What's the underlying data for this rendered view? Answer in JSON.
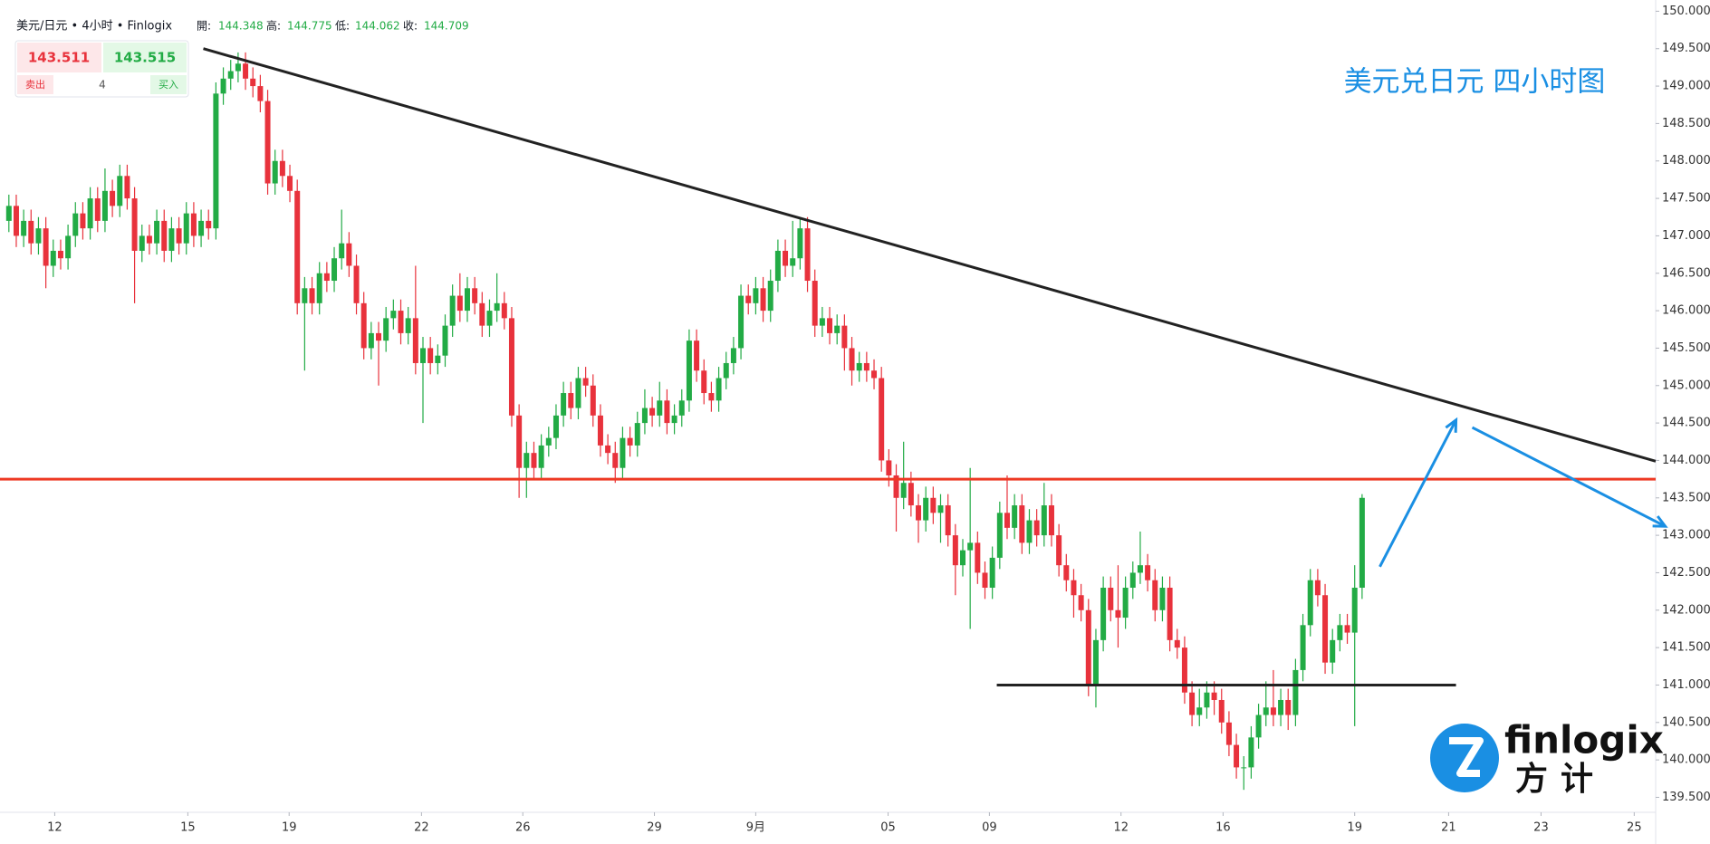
{
  "chart_data": {
    "type": "candlestick",
    "header": {
      "symbol": "美元/日元 • 4小时 • Finlogix",
      "open_label": "開:",
      "open": 144.348,
      "high_label": "高:",
      "high": 144.775,
      "low_label": "低:",
      "low": 144.062,
      "close_label": "收:",
      "close": 144.709
    },
    "trade_box": {
      "sell": 143.511,
      "buy": 143.515,
      "sell_label": "卖出",
      "lot": 4,
      "buy_label": "买入"
    },
    "title": "美元兑日元 四小时图",
    "logo": {
      "word": "finlogix",
      "sub": "方计"
    },
    "up_color": "#22ab45",
    "down_color": "#e8323c",
    "xlim": [
      -1.2,
      222.7
    ],
    "xticks": [
      {
        "value": 6.2,
        "label": "12"
      },
      {
        "value": 24.2,
        "label": "15"
      },
      {
        "value": 37.9,
        "label": "19"
      },
      {
        "value": 55.8,
        "label": "22"
      },
      {
        "value": 69.5,
        "label": "26"
      },
      {
        "value": 87.3,
        "label": "29"
      },
      {
        "value": 101,
        "label": "9月"
      },
      {
        "value": 118.9,
        "label": "05"
      },
      {
        "value": 132.6,
        "label": "09"
      },
      {
        "value": 150.4,
        "label": "12"
      },
      {
        "value": 164.2,
        "label": "16"
      },
      {
        "value": 182,
        "label": "19"
      },
      {
        "value": 194.7,
        "label": "21"
      },
      {
        "value": 207.2,
        "label": "23"
      },
      {
        "value": 219.8,
        "label": "25"
      }
    ],
    "ylim": [
      139.3,
      150.15
    ],
    "yticks": [
      {
        "value": 139.5,
        "label": "139.500"
      },
      {
        "value": 140,
        "label": "140.000"
      },
      {
        "value": 140.5,
        "label": "140.500"
      },
      {
        "value": 141,
        "label": "141.000"
      },
      {
        "value": 141.5,
        "label": "141.500"
      },
      {
        "value": 142,
        "label": "142.000"
      },
      {
        "value": 142.5,
        "label": "142.500"
      },
      {
        "value": 143,
        "label": "143.000"
      },
      {
        "value": 143.5,
        "label": "143.500"
      },
      {
        "value": 144,
        "label": "144.000"
      },
      {
        "value": 144.5,
        "label": "144.500"
      },
      {
        "value": 145,
        "label": "145.000"
      },
      {
        "value": 145.5,
        "label": "145.500"
      },
      {
        "value": 146,
        "label": "146.000"
      },
      {
        "value": 146.5,
        "label": "146.500"
      },
      {
        "value": 147,
        "label": "147.000"
      },
      {
        "value": 147.5,
        "label": "147.500"
      },
      {
        "value": 148,
        "label": "148.000"
      },
      {
        "value": 148.5,
        "label": "148.500"
      },
      {
        "value": 149,
        "label": "149.000"
      },
      {
        "value": 149.5,
        "label": "149.500"
      },
      {
        "value": 150,
        "label": "150.000"
      }
    ],
    "lines": [
      {
        "color": "#ee3a24",
        "points": [
          [
            -1.2,
            143.75
          ],
          [
            222.7,
            143.75
          ]
        ]
      },
      {
        "color": "#222222",
        "points": [
          [
            26.3,
            149.5
          ],
          [
            222.7,
            143.99
          ]
        ]
      },
      {
        "color": "#222222",
        "points": [
          [
            133.6,
            141.0
          ],
          [
            195.7,
            141.0
          ]
        ]
      }
    ],
    "arrows": [
      {
        "color": "#1a8fe3",
        "points": [
          [
            185.4,
            142.58
          ],
          [
            195.7,
            144.54
          ]
        ]
      },
      {
        "color": "#1a8fe3",
        "points": [
          [
            197.9,
            144.44
          ],
          [
            224,
            143.12
          ]
        ]
      }
    ],
    "candles": [
      [
        147.2,
        147.55,
        147.05,
        147.4
      ],
      [
        147.4,
        147.55,
        146.85,
        147.0
      ],
      [
        147.0,
        147.35,
        146.85,
        147.2
      ],
      [
        147.2,
        147.35,
        146.75,
        146.9
      ],
      [
        146.9,
        147.25,
        146.75,
        147.1
      ],
      [
        147.1,
        147.25,
        146.3,
        146.6
      ],
      [
        146.6,
        146.95,
        146.45,
        146.8
      ],
      [
        146.8,
        146.95,
        146.55,
        146.7
      ],
      [
        146.7,
        147.15,
        146.55,
        147.0
      ],
      [
        147.0,
        147.45,
        146.85,
        147.3
      ],
      [
        147.3,
        147.45,
        146.95,
        147.1
      ],
      [
        147.1,
        147.65,
        146.95,
        147.5
      ],
      [
        147.5,
        147.65,
        147.05,
        147.2
      ],
      [
        147.2,
        147.9,
        147.05,
        147.6
      ],
      [
        147.6,
        147.75,
        147.25,
        147.4
      ],
      [
        147.4,
        147.95,
        147.25,
        147.8
      ],
      [
        147.8,
        147.95,
        147.35,
        147.5
      ],
      [
        147.5,
        147.65,
        146.1,
        146.8
      ],
      [
        146.8,
        147.15,
        146.65,
        147.0
      ],
      [
        147.0,
        147.15,
        146.75,
        146.9
      ],
      [
        146.9,
        147.35,
        146.75,
        147.2
      ],
      [
        147.2,
        147.35,
        146.65,
        146.8
      ],
      [
        146.8,
        147.25,
        146.65,
        147.1
      ],
      [
        147.1,
        147.25,
        146.75,
        146.9
      ],
      [
        146.9,
        147.45,
        146.75,
        147.3
      ],
      [
        147.3,
        147.45,
        146.85,
        147.0
      ],
      [
        147.0,
        147.35,
        146.85,
        147.2
      ],
      [
        147.2,
        147.35,
        146.95,
        147.1
      ],
      [
        147.1,
        149.05,
        146.95,
        148.9
      ],
      [
        148.9,
        149.25,
        148.75,
        149.1
      ],
      [
        149.1,
        149.35,
        148.95,
        149.2
      ],
      [
        149.2,
        149.45,
        149.05,
        149.3
      ],
      [
        149.3,
        149.45,
        148.95,
        149.1
      ],
      [
        149.1,
        149.25,
        148.85,
        149.0
      ],
      [
        149.0,
        149.15,
        148.65,
        148.8
      ],
      [
        148.8,
        148.95,
        147.55,
        147.7
      ],
      [
        147.7,
        148.15,
        147.55,
        148.0
      ],
      [
        148.0,
        148.15,
        147.65,
        147.8
      ],
      [
        147.8,
        147.95,
        147.45,
        147.6
      ],
      [
        147.6,
        147.75,
        145.95,
        146.1
      ],
      [
        146.1,
        146.45,
        145.2,
        146.3
      ],
      [
        146.3,
        146.45,
        145.95,
        146.1
      ],
      [
        146.1,
        146.65,
        145.95,
        146.5
      ],
      [
        146.5,
        146.65,
        146.25,
        146.4
      ],
      [
        146.4,
        146.85,
        146.25,
        146.7
      ],
      [
        146.7,
        147.35,
        146.55,
        146.9
      ],
      [
        146.9,
        147.05,
        146.45,
        146.6
      ],
      [
        146.6,
        146.75,
        145.95,
        146.1
      ],
      [
        146.1,
        146.25,
        145.35,
        145.5
      ],
      [
        145.5,
        145.85,
        145.35,
        145.7
      ],
      [
        145.7,
        145.85,
        145.0,
        145.6
      ],
      [
        145.6,
        146.05,
        145.45,
        145.9
      ],
      [
        145.9,
        146.15,
        145.75,
        146.0
      ],
      [
        146.0,
        146.15,
        145.55,
        145.7
      ],
      [
        145.7,
        146.05,
        145.55,
        145.9
      ],
      [
        145.9,
        146.6,
        145.15,
        145.3
      ],
      [
        145.3,
        145.65,
        144.5,
        145.5
      ],
      [
        145.5,
        145.65,
        145.15,
        145.3
      ],
      [
        145.3,
        145.55,
        145.15,
        145.4
      ],
      [
        145.4,
        145.95,
        145.25,
        145.8
      ],
      [
        145.8,
        146.35,
        145.65,
        146.2
      ],
      [
        146.2,
        146.5,
        145.85,
        146.0
      ],
      [
        146.0,
        146.45,
        145.85,
        146.3
      ],
      [
        146.3,
        146.45,
        145.95,
        146.1
      ],
      [
        146.1,
        146.25,
        145.65,
        145.8
      ],
      [
        145.8,
        146.15,
        145.65,
        146.0
      ],
      [
        146.0,
        146.5,
        145.85,
        146.1
      ],
      [
        146.1,
        146.25,
        145.75,
        145.9
      ],
      [
        145.9,
        146.05,
        144.45,
        144.6
      ],
      [
        144.6,
        144.75,
        143.5,
        143.9
      ],
      [
        143.9,
        144.25,
        143.5,
        144.1
      ],
      [
        144.1,
        144.25,
        143.75,
        143.9
      ],
      [
        143.9,
        144.35,
        143.75,
        144.2
      ],
      [
        144.2,
        144.45,
        144.05,
        144.3
      ],
      [
        144.3,
        144.75,
        144.15,
        144.6
      ],
      [
        144.6,
        145.05,
        144.45,
        144.9
      ],
      [
        144.9,
        145.05,
        144.55,
        144.7
      ],
      [
        144.7,
        145.25,
        144.55,
        145.1
      ],
      [
        145.1,
        145.25,
        144.85,
        145.0
      ],
      [
        145.0,
        145.15,
        144.45,
        144.6
      ],
      [
        144.6,
        144.75,
        144.05,
        144.2
      ],
      [
        144.2,
        144.35,
        143.95,
        144.1
      ],
      [
        144.1,
        144.25,
        143.7,
        143.9
      ],
      [
        143.9,
        144.45,
        143.75,
        144.3
      ],
      [
        144.3,
        144.45,
        144.05,
        144.2
      ],
      [
        144.2,
        144.65,
        144.05,
        144.5
      ],
      [
        144.5,
        144.95,
        144.35,
        144.7
      ],
      [
        144.7,
        144.85,
        144.45,
        144.6
      ],
      [
        144.6,
        145.05,
        144.45,
        144.8
      ],
      [
        144.8,
        144.95,
        144.35,
        144.5
      ],
      [
        144.5,
        144.75,
        144.35,
        144.6
      ],
      [
        144.6,
        144.95,
        144.45,
        144.8
      ],
      [
        144.8,
        145.75,
        144.65,
        145.6
      ],
      [
        145.6,
        145.75,
        145.05,
        145.2
      ],
      [
        145.2,
        145.35,
        144.75,
        144.9
      ],
      [
        144.9,
        145.05,
        144.65,
        144.8
      ],
      [
        144.8,
        145.25,
        144.65,
        145.1
      ],
      [
        145.1,
        145.45,
        144.95,
        145.3
      ],
      [
        145.3,
        145.65,
        145.15,
        145.5
      ],
      [
        145.5,
        146.35,
        145.35,
        146.2
      ],
      [
        146.2,
        146.35,
        145.95,
        146.1
      ],
      [
        146.1,
        146.45,
        145.95,
        146.3
      ],
      [
        146.3,
        146.45,
        145.85,
        146.0
      ],
      [
        146.0,
        146.55,
        145.85,
        146.4
      ],
      [
        146.4,
        146.95,
        146.25,
        146.8
      ],
      [
        146.8,
        146.95,
        146.45,
        146.6
      ],
      [
        146.6,
        147.2,
        146.45,
        146.7
      ],
      [
        146.7,
        147.25,
        146.55,
        147.1
      ],
      [
        147.1,
        147.25,
        146.25,
        146.4
      ],
      [
        146.4,
        146.55,
        145.65,
        145.8
      ],
      [
        145.8,
        146.05,
        145.65,
        145.9
      ],
      [
        145.9,
        146.05,
        145.55,
        145.7
      ],
      [
        145.7,
        145.95,
        145.55,
        145.8
      ],
      [
        145.8,
        145.95,
        145.2,
        145.5
      ],
      [
        145.5,
        145.65,
        145.0,
        145.2
      ],
      [
        145.2,
        145.45,
        145.05,
        145.3
      ],
      [
        145.3,
        145.45,
        145.05,
        145.2
      ],
      [
        145.2,
        145.35,
        144.95,
        145.1
      ],
      [
        145.1,
        145.25,
        143.85,
        144.0
      ],
      [
        144.0,
        144.15,
        143.65,
        143.8
      ],
      [
        143.8,
        143.95,
        143.05,
        143.5
      ],
      [
        143.5,
        144.25,
        143.35,
        143.7
      ],
      [
        143.7,
        143.85,
        143.25,
        143.4
      ],
      [
        143.4,
        143.55,
        142.9,
        143.2
      ],
      [
        143.2,
        143.65,
        143.05,
        143.5
      ],
      [
        143.5,
        143.65,
        143.15,
        143.3
      ],
      [
        143.3,
        143.55,
        142.9,
        143.4
      ],
      [
        143.4,
        143.55,
        142.85,
        143.0
      ],
      [
        143.0,
        143.15,
        142.2,
        142.6
      ],
      [
        142.6,
        142.95,
        142.45,
        142.8
      ],
      [
        142.8,
        143.9,
        141.75,
        142.9
      ],
      [
        142.9,
        143.05,
        142.35,
        142.5
      ],
      [
        142.5,
        142.65,
        142.15,
        142.3
      ],
      [
        142.3,
        142.85,
        142.15,
        142.7
      ],
      [
        142.7,
        143.45,
        142.55,
        143.3
      ],
      [
        143.3,
        143.8,
        142.95,
        143.1
      ],
      [
        143.1,
        143.55,
        142.95,
        143.4
      ],
      [
        143.4,
        143.55,
        142.75,
        142.9
      ],
      [
        142.9,
        143.35,
        142.75,
        143.2
      ],
      [
        143.2,
        143.35,
        142.85,
        143.0
      ],
      [
        143.0,
        143.7,
        142.85,
        143.4
      ],
      [
        143.4,
        143.55,
        142.85,
        143.0
      ],
      [
        143.0,
        143.15,
        142.45,
        142.6
      ],
      [
        142.6,
        142.75,
        142.25,
        142.4
      ],
      [
        142.4,
        142.55,
        141.9,
        142.2
      ],
      [
        142.2,
        142.35,
        141.85,
        142.0
      ],
      [
        142.0,
        142.15,
        140.85,
        141.0
      ],
      [
        141.0,
        141.75,
        140.7,
        141.6
      ],
      [
        141.6,
        142.45,
        141.45,
        142.3
      ],
      [
        142.3,
        142.45,
        141.85,
        142.0
      ],
      [
        142.0,
        142.6,
        141.5,
        141.9
      ],
      [
        141.9,
        142.45,
        141.75,
        142.3
      ],
      [
        142.3,
        142.65,
        142.15,
        142.5
      ],
      [
        142.5,
        143.05,
        142.35,
        142.6
      ],
      [
        142.6,
        142.75,
        142.25,
        142.4
      ],
      [
        142.4,
        142.55,
        141.85,
        142.0
      ],
      [
        142.0,
        142.45,
        141.85,
        142.3
      ],
      [
        142.3,
        142.45,
        141.45,
        141.6
      ],
      [
        141.6,
        141.75,
        141.35,
        141.5
      ],
      [
        141.5,
        141.65,
        140.75,
        140.9
      ],
      [
        140.9,
        141.05,
        140.45,
        140.6
      ],
      [
        140.6,
        140.95,
        140.45,
        140.7
      ],
      [
        140.7,
        141.05,
        140.55,
        140.9
      ],
      [
        140.9,
        141.05,
        140.6,
        140.8
      ],
      [
        140.8,
        140.95,
        140.35,
        140.5
      ],
      [
        140.5,
        140.65,
        140.05,
        140.2
      ],
      [
        140.2,
        140.35,
        139.75,
        139.9
      ],
      [
        139.9,
        140.05,
        139.6,
        139.9
      ],
      [
        139.9,
        140.45,
        139.75,
        140.3
      ],
      [
        140.3,
        140.75,
        140.15,
        140.6
      ],
      [
        140.6,
        141.05,
        140.45,
        140.7
      ],
      [
        140.7,
        141.2,
        140.45,
        140.6
      ],
      [
        140.6,
        140.95,
        140.45,
        140.8
      ],
      [
        140.8,
        140.95,
        140.4,
        140.6
      ],
      [
        140.6,
        141.35,
        140.45,
        141.2
      ],
      [
        141.2,
        141.95,
        141.05,
        141.8
      ],
      [
        141.8,
        142.55,
        141.65,
        142.4
      ],
      [
        142.4,
        142.55,
        142.05,
        142.2
      ],
      [
        142.2,
        142.35,
        141.15,
        141.3
      ],
      [
        141.3,
        141.75,
        141.15,
        141.6
      ],
      [
        141.6,
        141.95,
        141.45,
        141.8
      ],
      [
        141.8,
        141.95,
        141.55,
        141.7
      ],
      [
        141.7,
        142.6,
        140.45,
        142.3
      ],
      [
        142.3,
        143.55,
        142.15,
        143.5
      ]
    ]
  }
}
